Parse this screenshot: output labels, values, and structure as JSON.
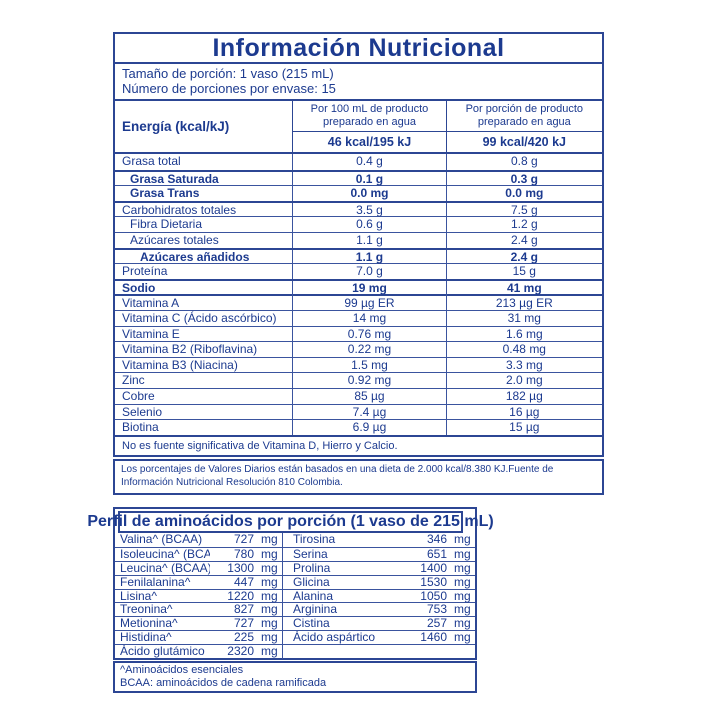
{
  "colors": {
    "ink": "#1c3a8f",
    "border": "#2c4694",
    "background": "#ffffff"
  },
  "header": {
    "title": "Información Nutricional",
    "serving_size": "Tamaño de porción: 1 vaso (215 mL)",
    "servings_per_container": "Número de porciones por envase: 15"
  },
  "energy": {
    "label": "Energía (kcal/kJ)",
    "col_100ml_header": "Por 100 mL de producto\npreparado en agua",
    "col_portion_header": "Por porción de producto\npreparado en agua",
    "value_100ml": "46 kcal/195 kJ",
    "value_portion": "99 kcal/420 kJ"
  },
  "nutrients": {
    "rows": [
      {
        "label": "Grasa total",
        "per_100ml": "0.4 g",
        "per_portion": "0.8 g",
        "bold": false,
        "indent": 0,
        "thick_top": false
      },
      {
        "label": "Grasa Saturada",
        "per_100ml": "0.1 g",
        "per_portion": "0.3 g",
        "bold": true,
        "indent": 1,
        "thick_top": true
      },
      {
        "label": "Grasa Trans",
        "per_100ml": "0.0 mg",
        "per_portion": "0.0 mg",
        "bold": true,
        "indent": 1,
        "thick_top": false
      },
      {
        "label": "Carbohidratos totales",
        "per_100ml": "3.5 g",
        "per_portion": "7.5 g",
        "bold": false,
        "indent": 0,
        "thick_top": true
      },
      {
        "label": "Fibra Dietaria",
        "per_100ml": "0.6 g",
        "per_portion": "1.2 g",
        "bold": false,
        "indent": 1,
        "thick_top": false
      },
      {
        "label": "Azúcares totales",
        "per_100ml": "1.1 g",
        "per_portion": "2.4 g",
        "bold": false,
        "indent": 1,
        "thick_top": false
      },
      {
        "label": "Azúcares añadidos",
        "per_100ml": "1.1 g",
        "per_portion": "2.4 g",
        "bold": true,
        "indent": 2,
        "thick_top": true
      },
      {
        "label": "Proteína",
        "per_100ml": "7.0 g",
        "per_portion": "15 g",
        "bold": false,
        "indent": 0,
        "thick_top": false
      },
      {
        "label": "Sodio",
        "per_100ml": "19 mg",
        "per_portion": "41 mg",
        "bold": true,
        "indent": 0,
        "thick_top": true
      },
      {
        "label": "Vitamina A",
        "per_100ml": "99 µg ER",
        "per_portion": "213 µg ER",
        "bold": false,
        "indent": 0,
        "thick_top": true
      },
      {
        "label": "Vitamina C (Ácido ascórbico)",
        "per_100ml": "14 mg",
        "per_portion": "31 mg",
        "bold": false,
        "indent": 0,
        "thick_top": false
      },
      {
        "label": "Vitamina E",
        "per_100ml": "0.76 mg",
        "per_portion": "1.6 mg",
        "bold": false,
        "indent": 0,
        "thick_top": false
      },
      {
        "label": "Vitamina B2 (Riboflavina)",
        "per_100ml": "0.22 mg",
        "per_portion": "0.48 mg",
        "bold": false,
        "indent": 0,
        "thick_top": false
      },
      {
        "label": "Vitamina B3 (Niacina)",
        "per_100ml": "1.5 mg",
        "per_portion": "3.3 mg",
        "bold": false,
        "indent": 0,
        "thick_top": false
      },
      {
        "label": "Zinc",
        "per_100ml": "0.92 mg",
        "per_portion": "2.0 mg",
        "bold": false,
        "indent": 0,
        "thick_top": false
      },
      {
        "label": "Cobre",
        "per_100ml": "85 µg",
        "per_portion": "182 µg",
        "bold": false,
        "indent": 0,
        "thick_top": false
      },
      {
        "label": "Selenio",
        "per_100ml": "7.4 µg",
        "per_portion": "16 µg",
        "bold": false,
        "indent": 0,
        "thick_top": false
      },
      {
        "label": "Biotina",
        "per_100ml": "6.9 µg",
        "per_portion": "15 µg",
        "bold": false,
        "indent": 0,
        "thick_top": false
      }
    ]
  },
  "significance_note": "No es fuente significativa de Vitamina D, Hierro y Calcio.",
  "daily_values_note": "Los porcentajes de Valores Diarios están basados en una dieta de 2.000 kcal/8.380 KJ.Fuente de Información Nutricional Resolución 810 Colombia.",
  "amino_profile": {
    "title": "Perfil de aminoácidos por porción (1 vaso de 215 mL)",
    "left_rows": [
      {
        "name": "Valina^ (BCAA)",
        "value": "727",
        "unit": "mg"
      },
      {
        "name": "Isoleucina^ (BCAA)",
        "value": "780",
        "unit": "mg"
      },
      {
        "name": "Leucina^ (BCAA)",
        "value": "1300",
        "unit": "mg"
      },
      {
        "name": "Fenilalanina^",
        "value": "447",
        "unit": "mg"
      },
      {
        "name": "Lisina^",
        "value": "1220",
        "unit": "mg"
      },
      {
        "name": "Treonina^",
        "value": "827",
        "unit": "mg"
      },
      {
        "name": "Metionina^",
        "value": "727",
        "unit": "mg"
      },
      {
        "name": "Histidina^",
        "value": "225",
        "unit": "mg"
      },
      {
        "name": "Ácido glutámico",
        "value": "2320",
        "unit": "mg"
      }
    ],
    "right_rows": [
      {
        "name": "Tirosina",
        "value": "346",
        "unit": "mg"
      },
      {
        "name": "Serina",
        "value": "651",
        "unit": "mg"
      },
      {
        "name": "Prolina",
        "value": "1400",
        "unit": "mg"
      },
      {
        "name": "Glicina",
        "value": "1530",
        "unit": "mg"
      },
      {
        "name": "Alanina",
        "value": "1050",
        "unit": "mg"
      },
      {
        "name": "Arginina",
        "value": "753",
        "unit": "mg"
      },
      {
        "name": "Cistina",
        "value": "257",
        "unit": "mg"
      },
      {
        "name": "Ácido aspártico",
        "value": "1460",
        "unit": "mg"
      }
    ],
    "footnote_essential": "^Aminoácidos esenciales",
    "footnote_bcaa": "BCAA: aminoácidos de cadena ramificada"
  }
}
